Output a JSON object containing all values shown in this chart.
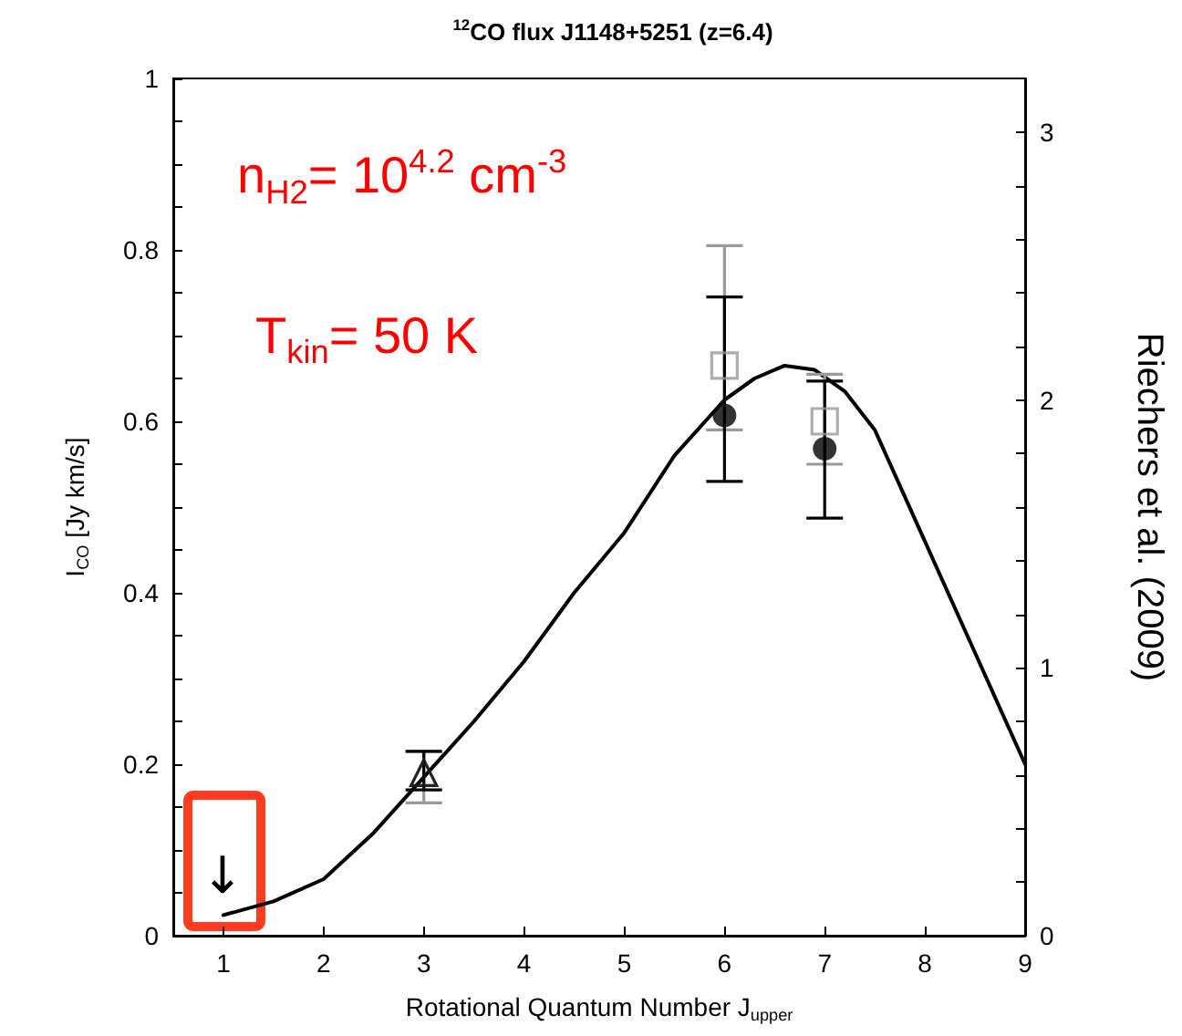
{
  "chart_data": {
    "type": "scatter",
    "title": "$^{12}$CO flux J1148+5251 (z=6.4)",
    "xlabel": "Rotational Quantum Number J$_{upper}$",
    "ylabel": "I$_{CO}$ [Jy km/s]",
    "y2label": "Riechers et al. (2009)",
    "xlim": [
      0.5,
      9
    ],
    "xticks": [
      1,
      2,
      3,
      4,
      5,
      6,
      7,
      8,
      9
    ],
    "ylim": [
      0,
      1
    ],
    "yticks": [
      0,
      {
        "value": 0.05,
        "label": null
      },
      {
        "value": 0.1,
        "label": null
      },
      {
        "value": 0.15,
        "label": null
      },
      0.2,
      {
        "value": 0.25,
        "label": null
      },
      {
        "value": 0.3,
        "label": null
      },
      {
        "value": 0.35,
        "label": null
      },
      0.4,
      {
        "value": 0.45,
        "label": null
      },
      {
        "value": 0.5,
        "label": null
      },
      {
        "value": 0.55,
        "label": null
      },
      0.6,
      {
        "value": 0.65,
        "label": null
      },
      {
        "value": 0.7,
        "label": null
      },
      {
        "value": 0.75,
        "label": null
      },
      0.8,
      {
        "value": 0.85,
        "label": null
      },
      {
        "value": 0.9,
        "label": null
      },
      {
        "value": 0.95,
        "label": null
      },
      1
    ],
    "y2lim": [
      0,
      3.2
    ],
    "y2ticks": [
      0,
      {
        "value": 0.2,
        "label": null
      },
      {
        "value": 0.4,
        "label": null
      },
      {
        "value": 0.6,
        "label": null
      },
      {
        "value": 0.8,
        "label": null
      },
      1,
      {
        "value": 1.2,
        "label": null
      },
      {
        "value": 1.4,
        "label": null
      },
      {
        "value": 1.6,
        "label": null
      },
      {
        "value": 1.8,
        "label": null
      },
      2,
      {
        "value": 2.2,
        "label": null
      },
      {
        "value": 2.4,
        "label": null
      },
      {
        "value": 2.6,
        "label": null
      },
      {
        "value": 2.8,
        "label": null
      },
      3
    ],
    "grid": false,
    "annotations": [
      "n$_{H2}$= 10$^{4.2}$ cm$^{-3}$",
      "T$_{kin}$= 50 K",
      "↓"
    ],
    "series": [
      {
        "type": "line",
        "color": "#000000",
        "marker": "none",
        "line_style": "solid",
        "x": [
          1,
          1.5,
          2,
          2.5,
          3,
          3.5,
          4,
          4.5,
          5,
          5.5,
          6,
          6.3,
          6.6,
          6.9,
          7.2,
          7.5,
          8,
          8.5,
          9
        ],
        "values": [
          0.024,
          0.04,
          0.066,
          0.12,
          0.185,
          0.25,
          0.32,
          0.4,
          0.47,
          0.56,
          0.625,
          0.65,
          0.665,
          0.66,
          0.635,
          0.59,
          0.46,
          0.33,
          0.2
        ]
      },
      {
        "color": "#999999",
        "marker": "triangle",
        "x": [
          3
        ],
        "values": [
          0.19
        ],
        "errors": [
          [
            0.155,
            0.215
          ]
        ]
      },
      {
        "color": "#999999",
        "marker": "square",
        "x": [
          6,
          7
        ],
        "values": [
          0.665,
          0.6
        ],
        "errors": [
          [
            0.59,
            0.805
          ],
          [
            0.55,
            0.655
          ]
        ]
      },
      {
        "color": "#000000",
        "marker": "triangle",
        "x": [
          3
        ],
        "values": [
          0.19
        ],
        "errors": [
          [
            0.17,
            0.215
          ]
        ]
      },
      {
        "color": "#000000",
        "marker": "circle",
        "x": [
          6,
          7
        ],
        "values": [
          0.607,
          0.568
        ],
        "errors": [
          [
            0.53,
            0.745
          ],
          [
            0.487,
            0.647
          ]
        ]
      }
    ]
  }
}
